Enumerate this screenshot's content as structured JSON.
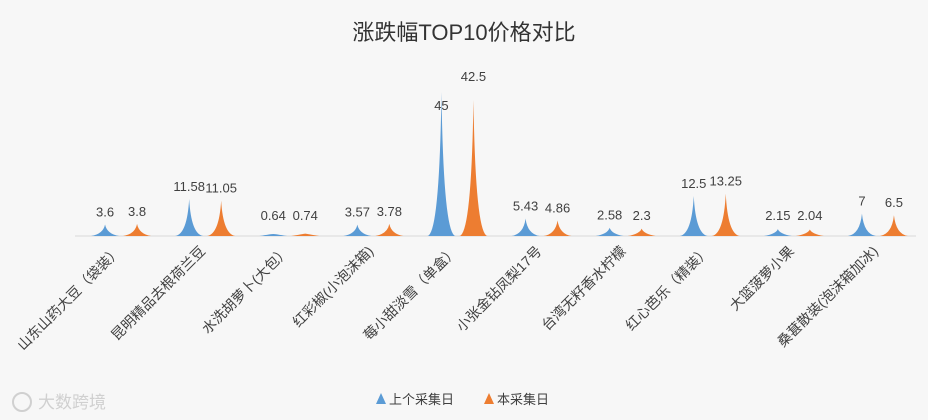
{
  "chart_data": {
    "type": "area",
    "title": "涨跌幅TOP10价格对比",
    "categories": [
      "山东山药大豆（袋装）",
      "昆明精品去根荷兰豆",
      "水洗胡萝卜(大包）",
      "红彩椒(小泡沫箱)",
      "莓小甜淡雪（单盒）",
      "小张金钻凤梨17号",
      "台湾无籽香水柠檬",
      "红心芭乐（精装）",
      "大篮菠萝小果",
      "桑葚散装(泡沫箱加冰)"
    ],
    "value_labels": {
      "series_0": [
        "3.6",
        "11.58",
        "0.64",
        "3.57",
        "45",
        "5.43",
        "2.58",
        "12.5",
        "2.15",
        "7"
      ],
      "series_1": [
        "3.8",
        "11.05",
        "0.74",
        "3.78",
        "42.5",
        "4.86",
        "2.3",
        "13.25",
        "2.04",
        "6.5"
      ]
    },
    "series": [
      {
        "name": "上个采集日",
        "color": "#5b9bd5",
        "values": [
          3.6,
          11.58,
          0.64,
          3.57,
          45,
          5.43,
          2.58,
          12.5,
          2.15,
          7
        ]
      },
      {
        "name": "本采集日",
        "color": "#ed7d31",
        "values": [
          3.8,
          11.05,
          0.74,
          3.78,
          42.5,
          4.86,
          2.3,
          13.25,
          2.04,
          6.5
        ]
      }
    ],
    "ylim": [
      0,
      45
    ],
    "grid": false,
    "legend": "bottom"
  },
  "watermark": "大数跨境",
  "colors": {
    "background": "#f7f7f7",
    "axis": "#d9d9d9"
  }
}
